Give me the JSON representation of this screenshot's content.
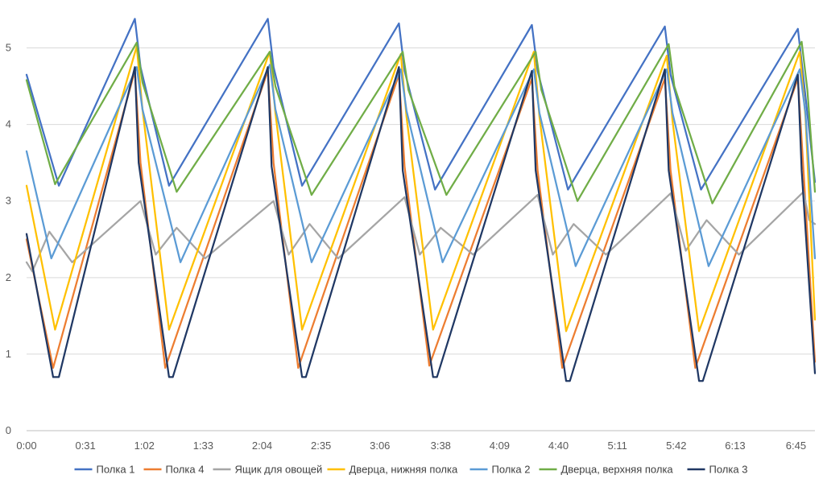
{
  "chart_data": {
    "type": "line",
    "title": "",
    "xlabel": "",
    "ylabel": "",
    "ylim": [
      0,
      5.5
    ],
    "xlim": [
      0,
      415
    ],
    "yticks": [
      "0",
      "1",
      "2",
      "3",
      "4",
      "5"
    ],
    "xticks": [
      "0:00",
      "0:31",
      "1:02",
      "1:33",
      "2:04",
      "2:35",
      "3:06",
      "3:38",
      "4:09",
      "4:40",
      "5:11",
      "5:42",
      "6:13",
      "6:45"
    ],
    "xtick_minutes": [
      0,
      31,
      62,
      93,
      124,
      155,
      186,
      218,
      249,
      280,
      311,
      342,
      373,
      405
    ],
    "legend_position": "bottom",
    "gridlines": "horizontal",
    "series": [
      {
        "name": "Полка 1",
        "color": "#4472C4",
        "x": [
          0,
          17,
          57,
          60,
          75,
          127,
          130,
          145,
          196,
          199,
          215,
          266,
          269,
          285,
          336,
          339,
          355,
          406,
          409,
          415
        ],
        "y": [
          4.65,
          3.2,
          5.38,
          4.75,
          3.2,
          5.38,
          4.75,
          3.2,
          5.32,
          4.7,
          3.15,
          5.3,
          4.7,
          3.15,
          5.28,
          4.65,
          3.15,
          5.25,
          4.6,
          3.25
        ]
      },
      {
        "name": "Полка 4",
        "color": "#ED7D31",
        "x": [
          0,
          14,
          57,
          60,
          73,
          127,
          130,
          143,
          196,
          199,
          212,
          266,
          269,
          282,
          336,
          339,
          352,
          406,
          409,
          415
        ],
        "y": [
          2.5,
          0.82,
          4.7,
          3.5,
          0.82,
          4.7,
          3.5,
          0.82,
          4.65,
          3.45,
          0.85,
          4.6,
          3.4,
          0.82,
          4.6,
          3.4,
          0.82,
          4.6,
          3.4,
          0.9
        ]
      },
      {
        "name": "Ящик для овощей",
        "color": "#A5A5A5",
        "x": [
          0,
          3,
          12,
          24,
          60,
          68,
          79,
          94,
          130,
          138,
          149,
          164,
          199,
          207,
          218,
          235,
          269,
          277,
          288,
          305,
          339,
          347,
          358,
          375,
          409,
          412,
          415
        ],
        "y": [
          2.2,
          2.08,
          2.6,
          2.2,
          3.0,
          2.3,
          2.65,
          2.25,
          3.0,
          2.3,
          2.7,
          2.25,
          3.05,
          2.3,
          2.65,
          2.3,
          3.08,
          2.3,
          2.7,
          2.3,
          3.1,
          2.35,
          2.75,
          2.3,
          3.12,
          2.75,
          2.7
        ]
      },
      {
        "name": "Дверца, нижняя полка",
        "color": "#FFC000",
        "x": [
          0,
          15,
          58,
          61,
          75,
          128,
          131,
          145,
          197,
          200,
          214,
          267,
          270,
          284,
          337,
          340,
          354,
          407,
          410,
          415
        ],
        "y": [
          3.2,
          1.32,
          5.02,
          4.2,
          1.32,
          4.95,
          4.15,
          1.32,
          4.92,
          4.1,
          1.32,
          4.95,
          4.1,
          1.3,
          4.9,
          4.05,
          1.3,
          4.95,
          4.1,
          1.45
        ]
      },
      {
        "name": "Полка 2",
        "color": "#5B9BD5",
        "x": [
          0,
          13,
          58,
          61,
          81,
          128,
          131,
          150,
          197,
          200,
          219,
          267,
          270,
          289,
          337,
          340,
          359,
          407,
          410,
          415
        ],
        "y": [
          3.65,
          2.25,
          4.75,
          4.2,
          2.2,
          4.78,
          4.2,
          2.2,
          4.72,
          4.18,
          2.2,
          4.72,
          4.15,
          2.15,
          4.72,
          4.15,
          2.15,
          4.72,
          4.15,
          2.25
        ]
      },
      {
        "name": "Дверца, верхняя полка",
        "color": "#70AD47",
        "x": [
          0,
          15,
          58,
          61,
          79,
          128,
          131,
          150,
          198,
          201,
          221,
          268,
          271,
          290,
          338,
          341,
          361,
          408,
          411,
          415
        ],
        "y": [
          4.58,
          3.22,
          5.07,
          4.55,
          3.12,
          4.95,
          4.5,
          3.08,
          4.95,
          4.45,
          3.08,
          4.95,
          4.45,
          3.0,
          5.05,
          4.5,
          2.97,
          5.08,
          4.45,
          3.12
        ]
      },
      {
        "name": "Полка 3",
        "color": "#203864",
        "x": [
          0,
          14,
          17,
          57,
          59,
          75,
          77,
          127,
          129,
          145,
          147,
          196,
          198,
          214,
          216,
          266,
          268,
          284,
          286,
          336,
          338,
          354,
          356,
          406,
          408,
          415
        ],
        "y": [
          2.57,
          0.7,
          0.7,
          4.75,
          3.5,
          0.7,
          0.7,
          4.75,
          3.45,
          0.7,
          0.7,
          4.75,
          3.4,
          0.7,
          0.7,
          4.7,
          3.4,
          0.65,
          0.65,
          4.72,
          3.4,
          0.65,
          0.65,
          4.65,
          3.4,
          0.75
        ]
      }
    ]
  }
}
